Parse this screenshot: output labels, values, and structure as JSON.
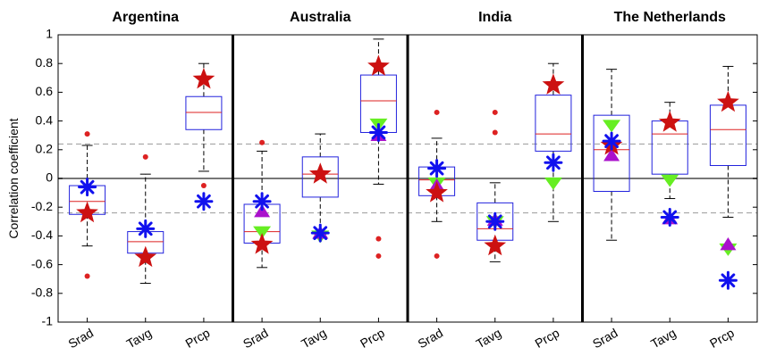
{
  "chart_data": {
    "type": "box",
    "ylabel": "Correlation coefficient",
    "ylim": [
      -1,
      1
    ],
    "yticks": [
      -1,
      -0.8,
      -0.6,
      -0.4,
      -0.2,
      0,
      0.2,
      0.4,
      0.6,
      0.8,
      1
    ],
    "yticklabels": [
      "-1",
      "-0.8",
      "-0.6",
      "-0.4",
      "-0.2",
      "0",
      "0.2",
      "0.4",
      "0.6",
      "0.8",
      "1"
    ],
    "reference_lines": [
      {
        "y": 0,
        "style": "solid",
        "color": "#777777"
      },
      {
        "y": 0.24,
        "style": "dashed",
        "color": "#999999"
      },
      {
        "y": -0.24,
        "style": "dashed",
        "color": "#999999"
      }
    ],
    "colors": {
      "box": "#2222dd",
      "median": "#dd2222",
      "whisker": "#000000",
      "outlier": "#dd2222",
      "star": "#cc1111",
      "asterisk": "#1111ee",
      "triangle_up": "#aa11cc",
      "triangle_down": "#66ee22",
      "separator": "#000000"
    },
    "panels": [
      {
        "title": "Argentina",
        "variables": [
          {
            "label": "Srad",
            "q1": -0.25,
            "median": -0.16,
            "q3": -0.05,
            "whisker_low": -0.47,
            "whisker_high": 0.23,
            "outliers": [
              0.31,
              -0.68
            ],
            "markers": {
              "star": -0.24,
              "asterisk": -0.06
            }
          },
          {
            "label": "Tavg",
            "q1": -0.52,
            "median": -0.44,
            "q3": -0.37,
            "whisker_low": -0.73,
            "whisker_high": 0.03,
            "outliers": [
              0.15
            ],
            "markers": {
              "star": -0.55,
              "asterisk": -0.35
            }
          },
          {
            "label": "Prcp",
            "q1": 0.34,
            "median": 0.46,
            "q3": 0.57,
            "whisker_low": 0.05,
            "whisker_high": 0.8,
            "outliers": [
              -0.05
            ],
            "markers": {
              "star": 0.69,
              "asterisk": -0.16
            }
          }
        ]
      },
      {
        "title": "Australia",
        "variables": [
          {
            "label": "Srad",
            "q1": -0.45,
            "median": -0.37,
            "q3": -0.18,
            "whisker_low": -0.62,
            "whisker_high": 0.19,
            "outliers": [
              0.25
            ],
            "markers": {
              "star": -0.46,
              "asterisk": -0.16,
              "triangle_up": -0.23,
              "triangle_down": -0.37
            }
          },
          {
            "label": "Tavg",
            "q1": -0.13,
            "median": 0.03,
            "q3": 0.15,
            "whisker_low": -0.39,
            "whisker_high": 0.31,
            "outliers": [],
            "markers": {
              "star": 0.03,
              "asterisk": -0.38,
              "triangle_up": -0.38,
              "triangle_down": -0.4
            }
          },
          {
            "label": "Prcp",
            "q1": 0.32,
            "median": 0.54,
            "q3": 0.72,
            "whisker_low": -0.04,
            "whisker_high": 0.97,
            "outliers": [
              -0.42,
              -0.54
            ],
            "markers": {
              "star": 0.78,
              "asterisk": 0.32,
              "triangle_up": 0.3,
              "triangle_down": 0.38
            }
          }
        ]
      },
      {
        "title": "India",
        "variables": [
          {
            "label": "Srad",
            "q1": -0.12,
            "median": -0.01,
            "q3": 0.08,
            "whisker_low": -0.3,
            "whisker_high": 0.28,
            "outliers": [
              0.46,
              -0.54
            ],
            "markers": {
              "star": -0.1,
              "asterisk": 0.07,
              "triangle_up": -0.05,
              "triangle_down": -0.03
            }
          },
          {
            "label": "Tavg",
            "q1": -0.43,
            "median": -0.35,
            "q3": -0.17,
            "whisker_low": -0.58,
            "whisker_high": -0.03,
            "outliers": [
              0.46,
              0.32
            ],
            "markers": {
              "star": -0.47,
              "asterisk": -0.3,
              "triangle_up": -0.29,
              "triangle_down": -0.3
            }
          },
          {
            "label": "Prcp",
            "q1": 0.19,
            "median": 0.31,
            "q3": 0.58,
            "whisker_low": -0.3,
            "whisker_high": 0.8,
            "outliers": [],
            "markers": {
              "star": 0.65,
              "asterisk": 0.11,
              "triangle_down": -0.03
            }
          }
        ]
      },
      {
        "title": "The Netherlands",
        "variables": [
          {
            "label": "Srad",
            "q1": -0.09,
            "median": 0.2,
            "q3": 0.44,
            "whisker_low": -0.43,
            "whisker_high": 0.76,
            "outliers": [],
            "markers": {
              "star": 0.23,
              "asterisk": 0.26,
              "triangle_up": 0.16,
              "triangle_down": 0.37
            }
          },
          {
            "label": "Tavg",
            "q1": 0.03,
            "median": 0.31,
            "q3": 0.4,
            "whisker_low": -0.14,
            "whisker_high": 0.53,
            "outliers": [],
            "markers": {
              "star": 0.39,
              "asterisk": -0.27,
              "triangle_up": -0.28,
              "triangle_down": -0.01
            }
          },
          {
            "label": "Prcp",
            "q1": 0.09,
            "median": 0.34,
            "q3": 0.51,
            "whisker_low": -0.27,
            "whisker_high": 0.78,
            "outliers": [],
            "markers": {
              "star": 0.53,
              "asterisk": -0.71,
              "triangle_up": -0.46,
              "triangle_down": -0.49
            }
          }
        ]
      }
    ]
  }
}
